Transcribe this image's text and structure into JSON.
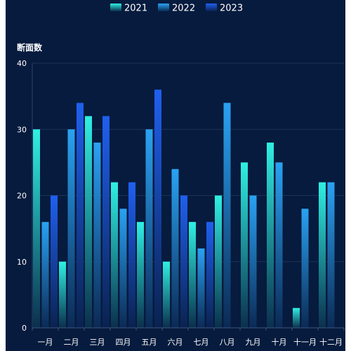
{
  "chart_data": {
    "type": "bar",
    "title": "",
    "xlabel": "",
    "ylabel": "断面数",
    "ylim": [
      0,
      40
    ],
    "yticks": [
      0,
      10,
      20,
      30,
      40
    ],
    "grid": true,
    "legend_position": "top-center",
    "categories": [
      "一月",
      "二月",
      "三月",
      "四月",
      "五月",
      "六月",
      "七月",
      "八月",
      "九月",
      "十月",
      "十一月",
      "十二月"
    ],
    "series": [
      {
        "name": "2021",
        "values": [
          30,
          10,
          32,
          22,
          16,
          10,
          16,
          20,
          25,
          28,
          3,
          22
        ],
        "color_top": "#2ff0e2",
        "color_bottom": "#0b2f4d"
      },
      {
        "name": "2022",
        "values": [
          16,
          30,
          28,
          18,
          30,
          24,
          12,
          34,
          20,
          25,
          18,
          22
        ],
        "color_top": "#2aa2f2",
        "color_bottom": "#0b2a55"
      },
      {
        "name": "2023",
        "values": [
          20,
          34,
          32,
          22,
          36,
          20,
          16,
          null,
          null,
          null,
          null,
          null
        ],
        "color_top": "#1f60f0",
        "color_bottom": "#0a2250"
      }
    ]
  }
}
